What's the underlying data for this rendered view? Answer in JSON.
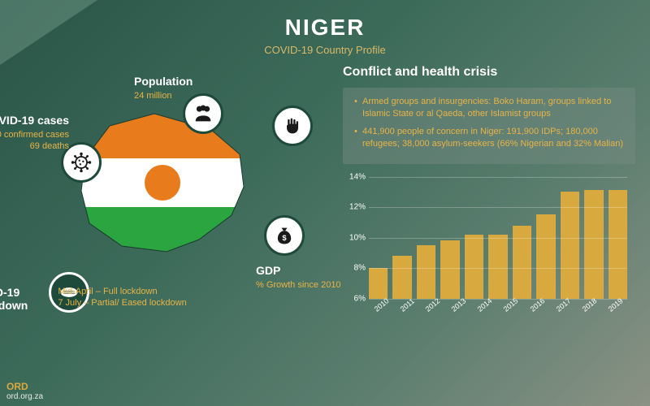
{
  "header": {
    "title": "NIGER",
    "subtitle": "COVID-19 Country Profile"
  },
  "map": {
    "flag_colors": {
      "top": "#e87b1c",
      "mid": "#ffffff",
      "bot": "#2aa53f",
      "circle": "#e87b1c"
    }
  },
  "stats": {
    "population": {
      "label": "Population",
      "value": "24 million"
    },
    "cases": {
      "label": "VID-19 cases",
      "line1": "0 confirmed cases",
      "line2": "69 deaths"
    },
    "gdp": {
      "label": "GDP",
      "value": "% Growth since 2010"
    },
    "lockdown": {
      "label": "ID-19\nkdown",
      "line1": "Mid-April – Full lockdown",
      "line2": "7 July – Partial/ Eased lockdown"
    }
  },
  "crisis": {
    "title": "Conflict and health crisis",
    "bullets": [
      "Armed groups and insurgencies: Boko Haram, groups linked to Islamic State or al Qaeda, other Islamist groups",
      "441,900 people of concern in Niger: 191,900 IDPs; 180,000 refugees; 38,000 asylum-seekers (66% Nigerian and 32% Malian)"
    ]
  },
  "chart": {
    "type": "bar",
    "years": [
      "2010",
      "2011",
      "2012",
      "2013",
      "2014",
      "2015",
      "2016",
      "2017",
      "2018",
      "2019",
      ""
    ],
    "values": [
      8,
      8.8,
      9.5,
      9.8,
      10.2,
      10.2,
      10.8,
      11.5,
      13,
      13.1,
      13.1
    ],
    "bar_color": "#d8a93f",
    "ylim": [
      6,
      14
    ],
    "yticks": [
      6,
      8,
      10,
      12,
      14
    ],
    "grid_color": "rgba(255,255,255,0.25)"
  },
  "footer": {
    "brand": "ORD",
    "url": "ord.org.za"
  },
  "colors": {
    "accent": "#e8b447",
    "icon_border": "#1e4a3c"
  }
}
